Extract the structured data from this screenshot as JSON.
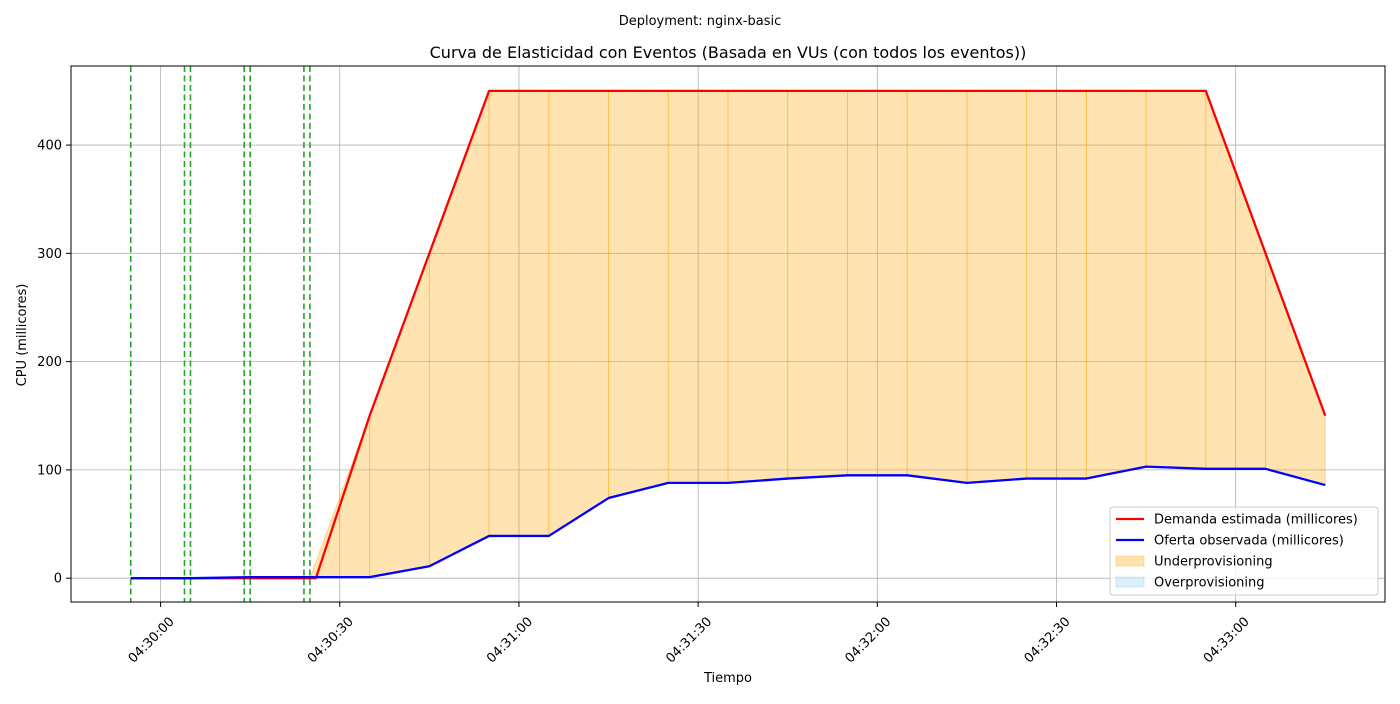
{
  "suptitle": "Deployment: nginx-basic",
  "chart_data": {
    "type": "line",
    "title": "Curva de Elasticidad con Eventos (Basada en VUs (con todos los eventos))",
    "xlabel": "Tiempo",
    "ylabel": "CPU (millicores)",
    "x_tick_labels": [
      "04:30:00",
      "04:30:30",
      "04:31:00",
      "04:31:30",
      "04:32:00",
      "04:32:30",
      "04:33:00"
    ],
    "x_tick_seconds": [
      0,
      30,
      60,
      90,
      120,
      150,
      180
    ],
    "y_ticks": [
      0,
      100,
      200,
      300,
      400
    ],
    "xlim": [
      -15,
      205
    ],
    "ylim": [
      -22,
      473
    ],
    "grid": true,
    "x": [
      -5,
      5,
      15,
      25,
      35,
      45,
      55,
      65,
      75,
      85,
      95,
      105,
      115,
      125,
      135,
      145,
      155,
      165,
      175,
      185,
      195
    ],
    "x_time": [
      "04:29:55",
      "04:30:05",
      "04:30:15",
      "04:30:25",
      "04:30:35",
      "04:30:45",
      "04:30:55",
      "04:31:05",
      "04:31:15",
      "04:31:25",
      "04:31:35",
      "04:31:45",
      "04:31:55",
      "04:32:05",
      "04:32:15",
      "04:32:25",
      "04:32:35",
      "04:32:45",
      "04:32:55",
      "04:33:05",
      "04:33:15"
    ],
    "series": [
      {
        "name": "Demanda estimada (millicores)",
        "color": "#ff0000",
        "x": [
          -5,
          5,
          15,
          25,
          26,
          35,
          45,
          55,
          65,
          75,
          85,
          95,
          105,
          115,
          125,
          135,
          145,
          155,
          165,
          175,
          185,
          195
        ],
        "values": [
          0,
          0,
          0,
          0,
          0,
          150,
          300,
          450,
          450,
          450,
          450,
          450,
          450,
          450,
          450,
          450,
          450,
          450,
          450,
          450,
          300,
          150
        ]
      },
      {
        "name": "Oferta observada (millicores)",
        "color": "#0000ff",
        "x": [
          -5,
          5,
          15,
          25,
          35,
          45,
          55,
          65,
          75,
          85,
          95,
          105,
          115,
          125,
          135,
          145,
          155,
          165,
          175,
          185,
          195
        ],
        "values": [
          0,
          0,
          1,
          1,
          1,
          11,
          39,
          39,
          74,
          88,
          88,
          92,
          95,
          95,
          88,
          92,
          92,
          103,
          101,
          101,
          86
        ]
      }
    ],
    "fills": [
      {
        "name": "Underprovisioning",
        "color": "#ffa500",
        "alpha": 0.3
      },
      {
        "name": "Overprovisioning",
        "color": "#87ceeb",
        "alpha": 0.3
      }
    ],
    "event_lines": {
      "color": "#2ca02c",
      "style": "dashed",
      "x": [
        -5,
        4,
        5,
        14,
        15,
        24,
        25
      ]
    },
    "legend": {
      "placement": "lower-right",
      "entries": [
        {
          "label": "Demanda estimada (millicores)",
          "kind": "line",
          "color": "#ff0000"
        },
        {
          "label": "Oferta observada (millicores)",
          "kind": "line",
          "color": "#0000ff"
        },
        {
          "label": "Underprovisioning",
          "kind": "patch",
          "color": "#ffa500"
        },
        {
          "label": "Overprovisioning",
          "kind": "patch",
          "color": "#87ceeb"
        }
      ]
    }
  }
}
